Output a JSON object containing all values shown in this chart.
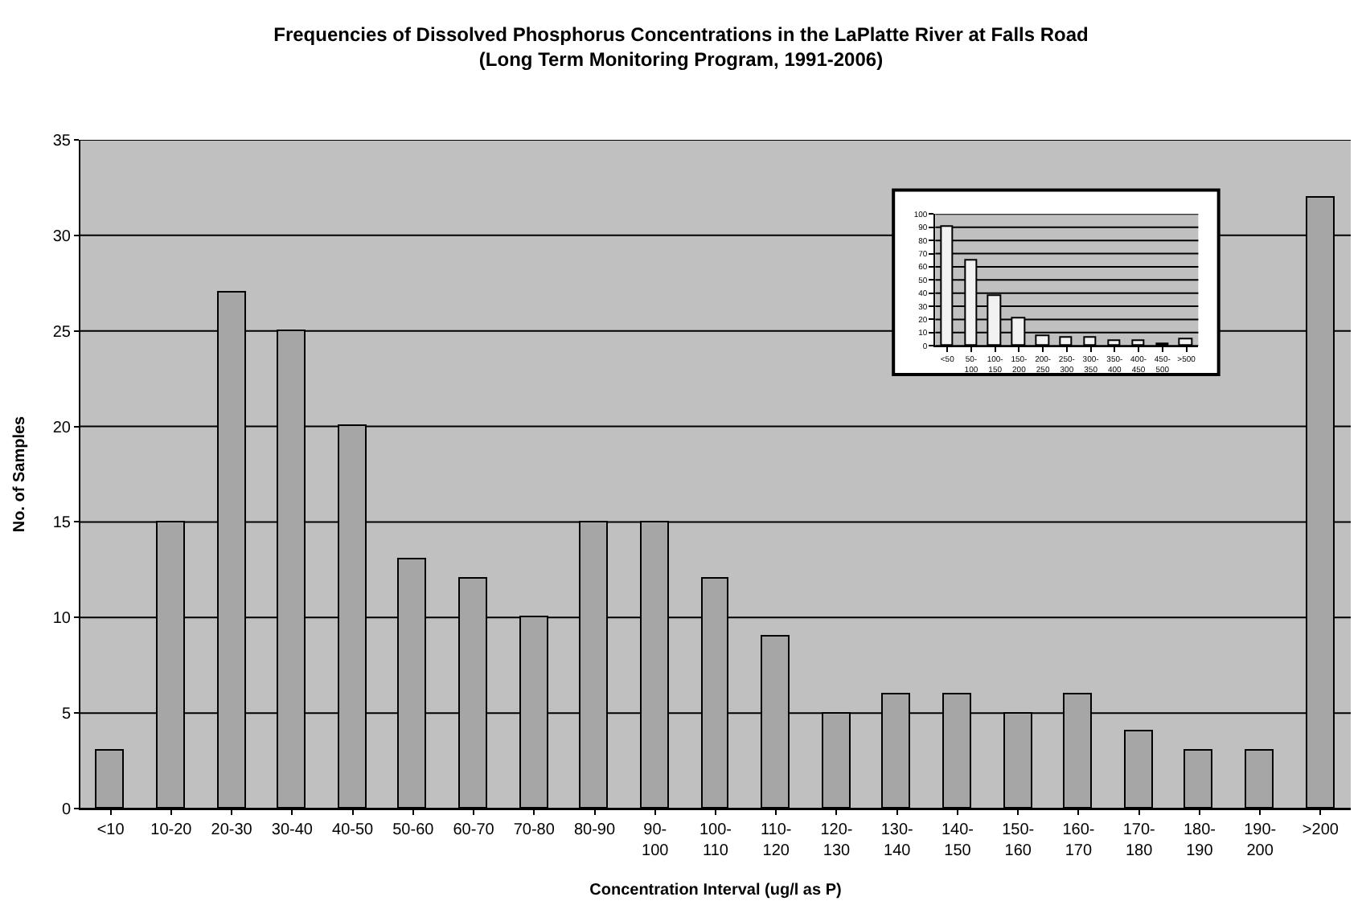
{
  "chart_data": [
    {
      "type": "bar",
      "title": "Frequencies of Dissolved Phosphorus Concentrations in the LaPlatte River at Falls Road",
      "subtitle": "(Long Term Monitoring Program, 1991-2006)",
      "xlabel": "Concentration Interval (ug/l as P)",
      "ylabel": "No. of Samples",
      "categories": [
        "<10",
        "10-20",
        "20-30",
        "30-40",
        "40-50",
        "50-60",
        "60-70",
        "70-80",
        "80-90",
        "90-100",
        "100-110",
        "110-120",
        "120-130",
        "130-140",
        "140-150",
        "150-160",
        "160-170",
        "170-180",
        "180-190",
        "190-200",
        ">200"
      ],
      "values": [
        3,
        15,
        27,
        25,
        20,
        13,
        12,
        10,
        15,
        15,
        12,
        9,
        5,
        6,
        6,
        5,
        6,
        4,
        3,
        3,
        32
      ],
      "color": "#a6a6a6",
      "ylim": [
        0,
        35
      ],
      "yticks": [
        0,
        5,
        10,
        15,
        20,
        25,
        30,
        35
      ],
      "grid": "y"
    },
    {
      "type": "bar",
      "categories": [
        "<50",
        "50-100",
        "100-150",
        "150-200",
        "200-250",
        "250-300",
        "300-350",
        "350-400",
        "400-450",
        "450-500",
        ">500"
      ],
      "values": [
        90,
        65,
        38,
        21,
        7,
        6,
        6,
        3,
        4,
        1,
        5
      ],
      "color": "#f2f2f2",
      "ylim": [
        0,
        100
      ],
      "yticks": [
        0,
        10,
        20,
        30,
        40,
        50,
        60,
        70,
        80,
        90,
        100
      ],
      "grid": "y"
    }
  ]
}
